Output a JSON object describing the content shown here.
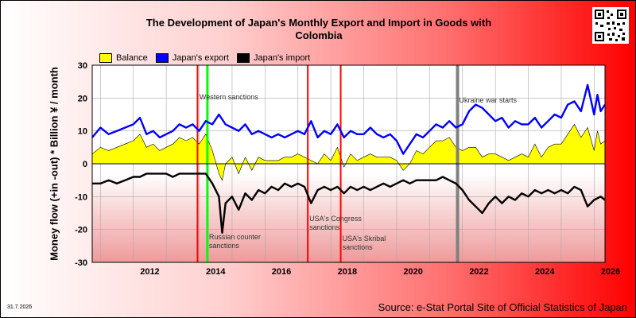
{
  "title_line1": "The Development of Japan's Monthly Export and Import in Goods with",
  "title_line2": "Colombia",
  "legend": [
    {
      "label": "Balance",
      "color": "#ffff00"
    },
    {
      "label": "Japan's export",
      "color": "#0000ff"
    },
    {
      "label": "Japan's import",
      "color": "#000000"
    }
  ],
  "ylabel": "Money flow (+in -out) * Billion ¥ / month",
  "date_stamp": "31.7.2026",
  "source": "Source: e-Stat Portal Site of Official Statistics of Japan",
  "colors": {
    "balance": "#ffff00",
    "export": "#0000ff",
    "import": "#000000",
    "sanction": "#ff0000",
    "western": "#00ff00",
    "war": "#808080"
  },
  "chart_data": {
    "type": "line",
    "xlim": [
      2010.75,
      2026.33
    ],
    "ylim": [
      -30,
      30
    ],
    "yticks": [
      -30,
      -20,
      -10,
      0,
      10,
      20,
      30
    ],
    "xticks": [
      2012,
      2014,
      2016,
      2018,
      2020,
      2022,
      2024,
      2026
    ],
    "grid": true,
    "legend_position": "top-left",
    "events": [
      {
        "x": 2013.95,
        "kind": "sanction",
        "label": ""
      },
      {
        "x": 2014.25,
        "kind": "western",
        "label": "Western sanctions"
      },
      {
        "x": 2014.25,
        "kind": "western",
        "label": "Russian counter sanctions"
      },
      {
        "x": 2017.3,
        "kind": "sanction",
        "label": "USA's Congress sanctions"
      },
      {
        "x": 2018.3,
        "kind": "sanction",
        "label": "USA's Skribal sanctions"
      },
      {
        "x": 2021.85,
        "kind": "war",
        "label": "Ukraine war starts"
      }
    ],
    "series": [
      {
        "name": "Japan's export",
        "color": "#0000ff",
        "points": [
          [
            2010.75,
            8
          ],
          [
            2011.0,
            11
          ],
          [
            2011.25,
            9
          ],
          [
            2011.5,
            10
          ],
          [
            2011.75,
            11
          ],
          [
            2012.0,
            12
          ],
          [
            2012.2,
            14
          ],
          [
            2012.4,
            9
          ],
          [
            2012.6,
            10
          ],
          [
            2012.8,
            8
          ],
          [
            2013.0,
            9
          ],
          [
            2013.2,
            10
          ],
          [
            2013.4,
            12
          ],
          [
            2013.6,
            11
          ],
          [
            2013.8,
            12
          ],
          [
            2014.0,
            10
          ],
          [
            2014.2,
            13
          ],
          [
            2014.4,
            12
          ],
          [
            2014.6,
            15
          ],
          [
            2014.8,
            12
          ],
          [
            2015.0,
            11
          ],
          [
            2015.2,
            10
          ],
          [
            2015.4,
            12
          ],
          [
            2015.6,
            9
          ],
          [
            2015.8,
            10
          ],
          [
            2016.0,
            9
          ],
          [
            2016.2,
            8
          ],
          [
            2016.4,
            9
          ],
          [
            2016.6,
            8
          ],
          [
            2016.8,
            9
          ],
          [
            2017.0,
            10
          ],
          [
            2017.2,
            9
          ],
          [
            2017.4,
            13
          ],
          [
            2017.6,
            8
          ],
          [
            2017.8,
            10
          ],
          [
            2018.0,
            9
          ],
          [
            2018.2,
            12
          ],
          [
            2018.4,
            8
          ],
          [
            2018.6,
            10
          ],
          [
            2018.8,
            9
          ],
          [
            2019.0,
            9
          ],
          [
            2019.2,
            11
          ],
          [
            2019.4,
            9
          ],
          [
            2019.6,
            8
          ],
          [
            2019.8,
            9
          ],
          [
            2020.0,
            7
          ],
          [
            2020.2,
            3
          ],
          [
            2020.4,
            6
          ],
          [
            2020.6,
            9
          ],
          [
            2020.8,
            8
          ],
          [
            2021.0,
            10
          ],
          [
            2021.2,
            12
          ],
          [
            2021.4,
            11
          ],
          [
            2021.6,
            13
          ],
          [
            2021.8,
            11
          ],
          [
            2022.0,
            12
          ],
          [
            2022.2,
            16
          ],
          [
            2022.4,
            18
          ],
          [
            2022.6,
            17
          ],
          [
            2022.8,
            15
          ],
          [
            2023.0,
            13
          ],
          [
            2023.2,
            14
          ],
          [
            2023.4,
            11
          ],
          [
            2023.6,
            13
          ],
          [
            2023.8,
            12
          ],
          [
            2024.0,
            12
          ],
          [
            2024.2,
            14
          ],
          [
            2024.4,
            11
          ],
          [
            2024.6,
            13
          ],
          [
            2024.8,
            15
          ],
          [
            2025.0,
            14
          ],
          [
            2025.2,
            18
          ],
          [
            2025.4,
            19
          ],
          [
            2025.6,
            16
          ],
          [
            2025.8,
            24
          ],
          [
            2026.0,
            15
          ],
          [
            2026.1,
            21
          ],
          [
            2026.2,
            16
          ],
          [
            2026.33,
            18
          ]
        ]
      },
      {
        "name": "Japan's import",
        "color": "#000000",
        "points": [
          [
            2010.75,
            -6
          ],
          [
            2011.0,
            -6
          ],
          [
            2011.25,
            -5
          ],
          [
            2011.5,
            -6
          ],
          [
            2011.75,
            -5
          ],
          [
            2012.0,
            -4
          ],
          [
            2012.2,
            -4
          ],
          [
            2012.4,
            -3
          ],
          [
            2012.6,
            -3
          ],
          [
            2012.8,
            -3
          ],
          [
            2013.0,
            -3
          ],
          [
            2013.2,
            -4
          ],
          [
            2013.4,
            -3
          ],
          [
            2013.6,
            -3
          ],
          [
            2013.8,
            -3
          ],
          [
            2014.0,
            -3
          ],
          [
            2014.2,
            -3
          ],
          [
            2014.4,
            -6
          ],
          [
            2014.6,
            -10
          ],
          [
            2014.7,
            -21
          ],
          [
            2014.8,
            -12
          ],
          [
            2015.0,
            -10
          ],
          [
            2015.2,
            -14
          ],
          [
            2015.4,
            -9
          ],
          [
            2015.6,
            -11
          ],
          [
            2015.8,
            -8
          ],
          [
            2016.0,
            -9
          ],
          [
            2016.2,
            -7
          ],
          [
            2016.4,
            -8
          ],
          [
            2016.6,
            -6
          ],
          [
            2016.8,
            -7
          ],
          [
            2017.0,
            -6
          ],
          [
            2017.2,
            -7
          ],
          [
            2017.4,
            -12
          ],
          [
            2017.6,
            -8
          ],
          [
            2017.8,
            -7
          ],
          [
            2018.0,
            -8
          ],
          [
            2018.2,
            -7
          ],
          [
            2018.4,
            -9
          ],
          [
            2018.6,
            -7
          ],
          [
            2018.8,
            -8
          ],
          [
            2019.0,
            -7
          ],
          [
            2019.2,
            -8
          ],
          [
            2019.4,
            -7
          ],
          [
            2019.6,
            -6
          ],
          [
            2019.8,
            -7
          ],
          [
            2020.0,
            -6
          ],
          [
            2020.2,
            -5
          ],
          [
            2020.4,
            -6
          ],
          [
            2020.6,
            -5
          ],
          [
            2020.8,
            -5
          ],
          [
            2021.0,
            -5
          ],
          [
            2021.2,
            -5
          ],
          [
            2021.4,
            -4
          ],
          [
            2021.6,
            -5
          ],
          [
            2021.8,
            -6
          ],
          [
            2022.0,
            -8
          ],
          [
            2022.2,
            -11
          ],
          [
            2022.4,
            -13
          ],
          [
            2022.6,
            -15
          ],
          [
            2022.8,
            -12
          ],
          [
            2023.0,
            -10
          ],
          [
            2023.2,
            -12
          ],
          [
            2023.4,
            -10
          ],
          [
            2023.6,
            -11
          ],
          [
            2023.8,
            -9
          ],
          [
            2024.0,
            -10
          ],
          [
            2024.2,
            -8
          ],
          [
            2024.4,
            -9
          ],
          [
            2024.6,
            -8
          ],
          [
            2024.8,
            -9
          ],
          [
            2025.0,
            -8
          ],
          [
            2025.2,
            -9
          ],
          [
            2025.4,
            -7
          ],
          [
            2025.6,
            -8
          ],
          [
            2025.8,
            -13
          ],
          [
            2026.0,
            -11
          ],
          [
            2026.2,
            -10
          ],
          [
            2026.33,
            -11
          ]
        ]
      }
    ],
    "balance": {
      "name": "Balance",
      "color": "#ffff00",
      "points": [
        [
          2010.75,
          3
        ],
        [
          2011.0,
          5
        ],
        [
          2011.25,
          4
        ],
        [
          2011.5,
          5
        ],
        [
          2011.75,
          6
        ],
        [
          2012.0,
          7
        ],
        [
          2012.2,
          9
        ],
        [
          2012.4,
          5
        ],
        [
          2012.6,
          6
        ],
        [
          2012.8,
          4
        ],
        [
          2013.0,
          5
        ],
        [
          2013.2,
          6
        ],
        [
          2013.4,
          8
        ],
        [
          2013.6,
          7
        ],
        [
          2013.8,
          8
        ],
        [
          2014.0,
          6
        ],
        [
          2014.2,
          9
        ],
        [
          2014.4,
          4
        ],
        [
          2014.6,
          -3
        ],
        [
          2014.7,
          -5
        ],
        [
          2014.8,
          0
        ],
        [
          2015.0,
          2
        ],
        [
          2015.2,
          -3
        ],
        [
          2015.4,
          2
        ],
        [
          2015.6,
          -2
        ],
        [
          2015.8,
          2
        ],
        [
          2016.0,
          1
        ],
        [
          2016.2,
          1
        ],
        [
          2016.4,
          1
        ],
        [
          2016.6,
          2
        ],
        [
          2016.8,
          2
        ],
        [
          2017.0,
          3
        ],
        [
          2017.2,
          2
        ],
        [
          2017.4,
          1
        ],
        [
          2017.6,
          0
        ],
        [
          2017.8,
          3
        ],
        [
          2018.0,
          1
        ],
        [
          2018.2,
          5
        ],
        [
          2018.4,
          -1
        ],
        [
          2018.6,
          3
        ],
        [
          2018.8,
          1
        ],
        [
          2019.0,
          2
        ],
        [
          2019.2,
          3
        ],
        [
          2019.4,
          2
        ],
        [
          2019.6,
          2
        ],
        [
          2019.8,
          2
        ],
        [
          2020.0,
          1
        ],
        [
          2020.2,
          -2
        ],
        [
          2020.4,
          0
        ],
        [
          2020.6,
          4
        ],
        [
          2020.8,
          3
        ],
        [
          2021.0,
          5
        ],
        [
          2021.2,
          7
        ],
        [
          2021.4,
          7
        ],
        [
          2021.6,
          8
        ],
        [
          2021.8,
          5
        ],
        [
          2022.0,
          4
        ],
        [
          2022.2,
          5
        ],
        [
          2022.4,
          5
        ],
        [
          2022.6,
          2
        ],
        [
          2022.8,
          3
        ],
        [
          2023.0,
          3
        ],
        [
          2023.2,
          2
        ],
        [
          2023.4,
          1
        ],
        [
          2023.6,
          2
        ],
        [
          2023.8,
          3
        ],
        [
          2024.0,
          2
        ],
        [
          2024.2,
          6
        ],
        [
          2024.4,
          2
        ],
        [
          2024.6,
          5
        ],
        [
          2024.8,
          6
        ],
        [
          2025.0,
          6
        ],
        [
          2025.2,
          9
        ],
        [
          2025.4,
          12
        ],
        [
          2025.6,
          8
        ],
        [
          2025.8,
          11
        ],
        [
          2026.0,
          4
        ],
        [
          2026.1,
          10
        ],
        [
          2026.2,
          6
        ],
        [
          2026.33,
          7
        ]
      ]
    }
  }
}
